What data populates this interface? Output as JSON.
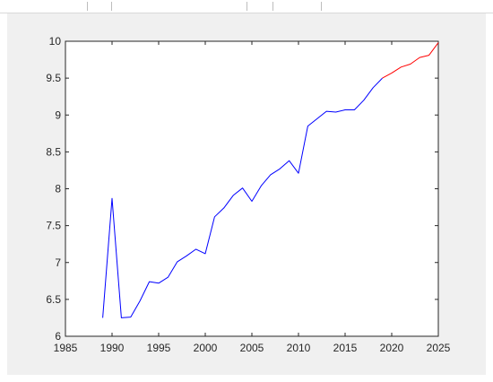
{
  "window": {
    "toolbar_separators": 5
  },
  "chart_data": {
    "type": "line",
    "title": "",
    "xlabel": "",
    "ylabel": "",
    "xlim": [
      1985,
      2025
    ],
    "ylim": [
      6,
      10
    ],
    "xticks": [
      "1985",
      "1990",
      "1995",
      "2000",
      "2005",
      "2010",
      "2015",
      "2020",
      "2025"
    ],
    "yticks": [
      "6",
      "6.5",
      "7",
      "7.5",
      "8",
      "8.5",
      "9",
      "9.5",
      "10"
    ],
    "grid": false,
    "series": [
      {
        "color": "#0000ff",
        "x": [
          1989,
          1990,
          1991,
          1992,
          1993,
          1994,
          1995,
          1996,
          1997,
          1998,
          1999,
          2000,
          2001,
          2002,
          2003,
          2004,
          2005,
          2006,
          2007,
          2008,
          2009,
          2010,
          2011,
          2012,
          2013,
          2014,
          2015,
          2016,
          2017,
          2018,
          2019
        ],
        "y": [
          6.25,
          7.87,
          6.25,
          6.26,
          6.48,
          6.74,
          6.72,
          6.8,
          7.01,
          7.09,
          7.18,
          7.12,
          7.62,
          7.74,
          7.91,
          8.01,
          7.83,
          8.04,
          8.19,
          8.27,
          8.38,
          8.21,
          8.85,
          8.95,
          9.05,
          9.04,
          9.07,
          9.07,
          9.2,
          9.37,
          9.5
        ]
      },
      {
        "color": "#ff0000",
        "x": [
          2019,
          2020,
          2021,
          2022,
          2023,
          2024,
          2025
        ],
        "y": [
          9.5,
          9.57,
          9.65,
          9.69,
          9.78,
          9.81,
          9.98
        ]
      }
    ]
  }
}
